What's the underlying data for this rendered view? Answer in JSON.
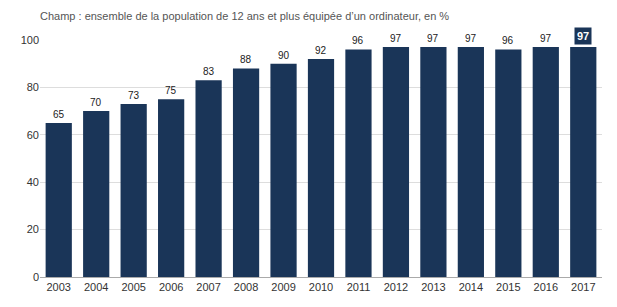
{
  "chart_data": {
    "type": "bar",
    "subtitle": "Champ : ensemble de la population de 12 ans et plus équipée d’un ordinateur, en %",
    "categories": [
      "2003",
      "2004",
      "2005",
      "2006",
      "2007",
      "2008",
      "2009",
      "2010",
      "2011",
      "2012",
      "2013",
      "2014",
      "2015",
      "2016",
      "2017"
    ],
    "values": [
      65,
      70,
      73,
      75,
      83,
      88,
      90,
      92,
      96,
      97,
      97,
      97,
      96,
      97,
      97
    ],
    "color": "#1a3558",
    "ylim": [
      0,
      100
    ],
    "yticks": [
      0,
      20,
      40,
      60,
      80,
      100
    ],
    "grid": true,
    "data_labels": true
  }
}
